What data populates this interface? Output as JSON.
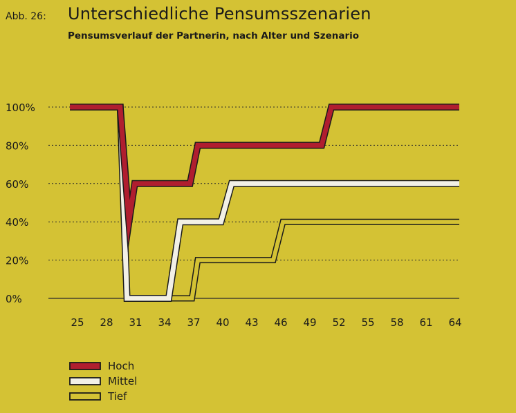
{
  "figure_label": "Abb. 26:",
  "chart_data": {
    "type": "line",
    "title": "Unterschiedliche Pensumsszenarien",
    "subtitle": "Pensumsverlauf der Partnerin, nach Alter und Szenario",
    "xlabel": "",
    "ylabel": "",
    "x_ticks": [
      25,
      28,
      31,
      34,
      37,
      40,
      43,
      46,
      49,
      52,
      55,
      58,
      61,
      64
    ],
    "y_ticks": [
      0,
      20,
      40,
      60,
      80,
      100
    ],
    "y_tick_labels": [
      "0%",
      "20%",
      "40%",
      "60%",
      "80%",
      "100%"
    ],
    "xlim": [
      24.2,
      64.4
    ],
    "ylim": [
      0,
      100
    ],
    "grid": "horizontal-dotted",
    "legend_position": "bottom-left",
    "series": [
      {
        "name": "Hoch",
        "color": "#b01e2f",
        "style": "filled",
        "points": [
          [
            24.2,
            100
          ],
          [
            29.4,
            100
          ],
          [
            30.3,
            40
          ],
          [
            30.9,
            60
          ],
          [
            36.6,
            60
          ],
          [
            37.4,
            80
          ],
          [
            50.2,
            80
          ],
          [
            51.2,
            100
          ],
          [
            64.4,
            100
          ]
        ]
      },
      {
        "name": "Mittel",
        "color": "#f2f0e6",
        "style": "filled",
        "points": [
          [
            24.2,
            100
          ],
          [
            29.4,
            100
          ],
          [
            30.1,
            0
          ],
          [
            34.4,
            0
          ],
          [
            35.6,
            40
          ],
          [
            39.8,
            40
          ],
          [
            40.9,
            60
          ],
          [
            64.4,
            60
          ]
        ]
      },
      {
        "name": "Tief",
        "color": "#1a1a1a",
        "style": "outline",
        "points": [
          [
            24.2,
            100
          ],
          [
            29.4,
            100
          ],
          [
            30.1,
            0
          ],
          [
            36.8,
            0
          ],
          [
            37.4,
            20
          ],
          [
            45.2,
            20
          ],
          [
            46.2,
            40
          ],
          [
            64.4,
            40
          ]
        ]
      }
    ]
  }
}
